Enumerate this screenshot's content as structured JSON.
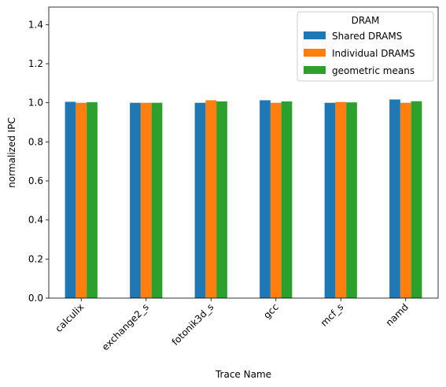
{
  "chart_data": {
    "type": "bar",
    "title": "",
    "xlabel": "Trace Name",
    "ylabel": "normalized IPC",
    "ylim": [
      0,
      1.49
    ],
    "yticks": [
      0.0,
      0.2,
      0.4,
      0.6,
      0.8,
      1.0,
      1.2,
      1.4
    ],
    "categories": [
      "calculix",
      "exchange2_s",
      "fotonik3d_s",
      "gcc",
      "mcf_s",
      "namd"
    ],
    "legend": {
      "title": "DRAM",
      "placement": "top-right"
    },
    "grid": false,
    "series": [
      {
        "name": "Shared DRAMS",
        "color": "#1f77b4",
        "values": [
          1.005,
          1.0,
          1.0,
          1.013,
          1.0,
          1.017
        ]
      },
      {
        "name": "Individual DRAMS",
        "color": "#ff7f0e",
        "values": [
          1.0,
          1.0,
          1.013,
          1.0,
          1.004,
          1.0
        ]
      },
      {
        "name": "geometric means",
        "color": "#2ca02c",
        "values": [
          1.003,
          1.0,
          1.007,
          1.007,
          1.002,
          1.008
        ]
      }
    ]
  }
}
